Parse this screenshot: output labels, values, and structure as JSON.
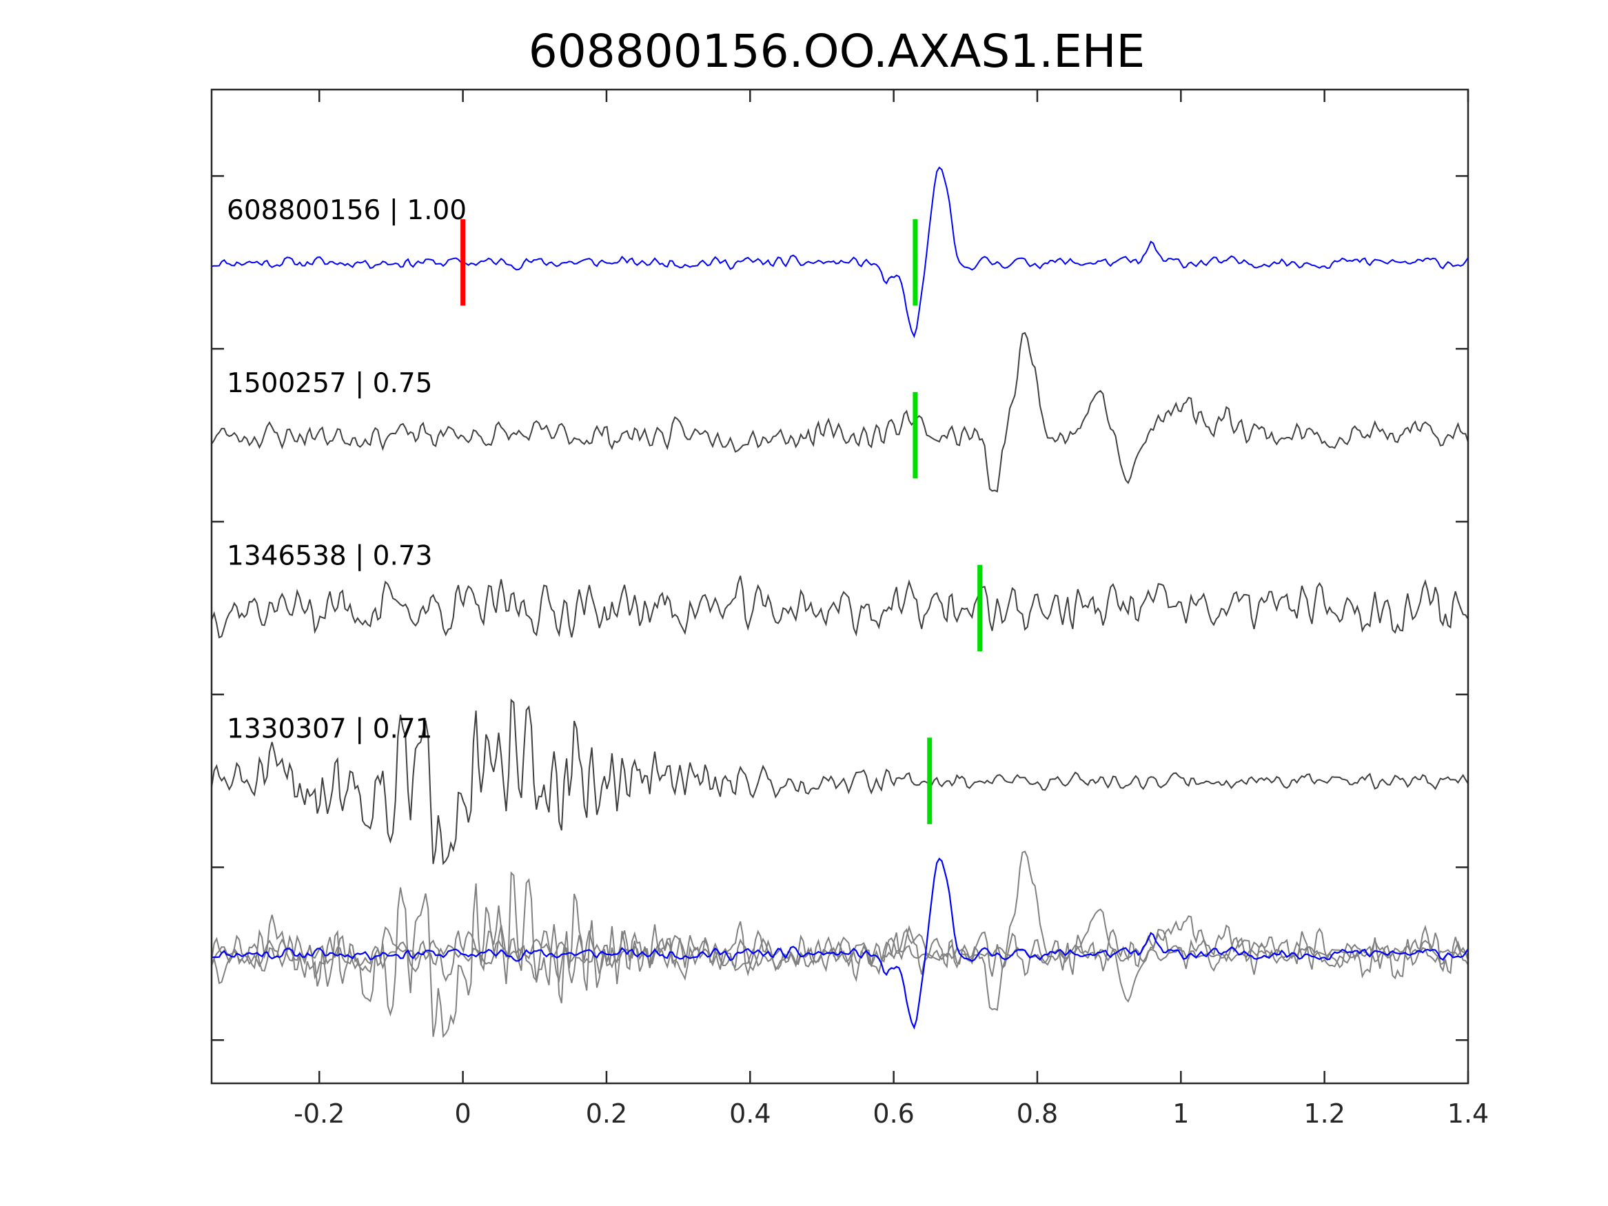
{
  "chart_data": {
    "type": "line",
    "title": "608800156.OO.AXAS1.EHE",
    "xlabel": "",
    "ylabel": "",
    "xlim": [
      -0.35,
      1.4
    ],
    "xticks": [
      -0.2,
      0,
      0.2,
      0.4,
      0.6,
      0.8,
      1,
      1.2,
      1.4
    ],
    "xtick_labels": [
      "-0.2",
      "0",
      "0.2",
      "0.4",
      "0.6",
      "0.8",
      "1",
      "1.2",
      "1.4"
    ],
    "ylim": [
      0,
      5.75
    ],
    "yticks": [
      0.25,
      1.25,
      2.25,
      3.25,
      4.25,
      5.25
    ],
    "grid": false,
    "traces": [
      {
        "label": "608800156 | 1.00",
        "color": "#0000ff",
        "baseline": 4.75,
        "marker": {
          "time": 0.0,
          "color": "#ff0000"
        },
        "pick": 0.63,
        "events": [
          [
            0.592,
            -0.12,
            0.012
          ],
          [
            0.628,
            -0.42,
            0.016
          ],
          [
            0.665,
            0.55,
            0.018
          ],
          [
            0.69,
            -0.08,
            0.012
          ],
          [
            0.96,
            0.1,
            0.01
          ]
        ],
        "noise_amp": 0.045,
        "seed": 11
      },
      {
        "label": "1500257 | 0.75",
        "color": "#404040",
        "baseline": 3.75,
        "pick": 0.63,
        "events": [
          [
            0.62,
            0.12,
            0.02
          ],
          [
            0.74,
            -0.38,
            0.012
          ],
          [
            0.785,
            0.55,
            0.02
          ],
          [
            0.885,
            0.25,
            0.02
          ],
          [
            0.925,
            -0.25,
            0.02
          ],
          [
            1.0,
            0.2,
            0.03
          ],
          [
            1.07,
            0.1,
            0.03
          ]
        ],
        "noise_amp": 0.11,
        "seed": 23
      },
      {
        "label": "1346538 | 0.73",
        "color": "#404040",
        "baseline": 2.75,
        "pick": 0.72,
        "events": [],
        "noise_amp": 0.2,
        "seed": 37
      },
      {
        "label": "1330307 | 0.71",
        "color": "#404040",
        "baseline": 1.75,
        "pick": 0.65,
        "events": [],
        "noise_amp": 0.1,
        "seed": 51,
        "burst": [
          0.0,
          0.55,
          0.24
        ],
        "late_amp": 0.06
      }
    ],
    "stack": {
      "baseline": 0.75,
      "background_color": "#808080",
      "highlight_color": "#0000ff"
    },
    "pick_color": "#00dd00"
  }
}
